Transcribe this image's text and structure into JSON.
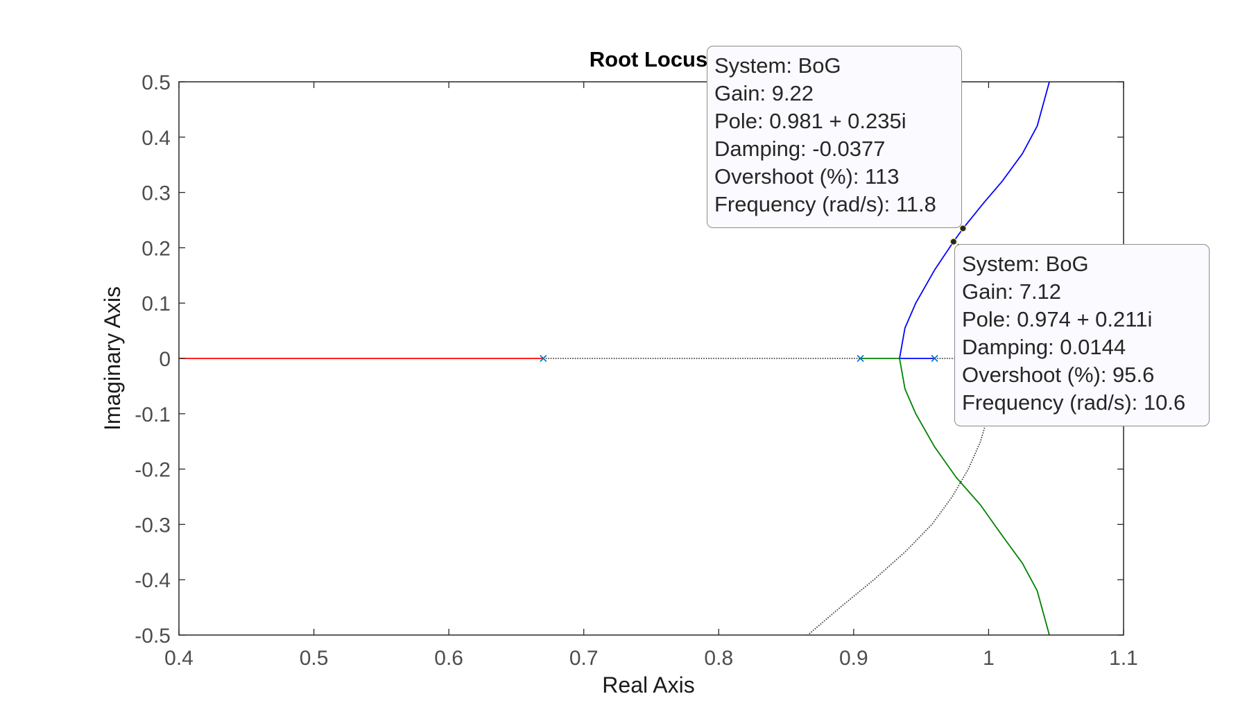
{
  "chart_data": {
    "type": "scatter",
    "title": "Root Locus",
    "xlabel": "Real Axis",
    "ylabel": "Imaginary Axis",
    "xlim": [
      0.4,
      1.1
    ],
    "ylim": [
      -0.5,
      0.5
    ],
    "xticks": [
      "0.4",
      "0.5",
      "0.6",
      "0.7",
      "0.8",
      "0.9",
      "1",
      "1.1"
    ],
    "yticks": [
      "0.5",
      "0.4",
      "0.3",
      "0.2",
      "0.1",
      "0",
      "-0.1",
      "-0.2",
      "-0.3",
      "-0.4",
      "-0.5"
    ],
    "grid": false,
    "series": [
      {
        "color": "#ff0000",
        "style": "solid",
        "points": [
          [
            0.4,
            0
          ],
          [
            0.67,
            0
          ]
        ]
      },
      {
        "color": "#0000ff",
        "style": "solid",
        "points": [
          [
            0.96,
            0
          ],
          [
            0.934,
            0
          ],
          [
            0.938,
            0.055
          ],
          [
            0.946,
            0.1
          ],
          [
            0.96,
            0.16
          ],
          [
            0.974,
            0.211
          ],
          [
            0.981,
            0.235
          ],
          [
            0.996,
            0.28
          ],
          [
            1.01,
            0.32
          ],
          [
            1.025,
            0.37
          ],
          [
            1.036,
            0.42
          ],
          [
            1.045,
            0.5
          ]
        ]
      },
      {
        "color": "#008000",
        "style": "solid",
        "points": [
          [
            0.905,
            0
          ],
          [
            0.934,
            0
          ],
          [
            0.938,
            -0.055
          ],
          [
            0.946,
            -0.1
          ],
          [
            0.96,
            -0.16
          ],
          [
            0.976,
            -0.215
          ],
          [
            0.994,
            -0.265
          ],
          [
            1.01,
            -0.32
          ],
          [
            1.025,
            -0.37
          ],
          [
            1.036,
            -0.42
          ],
          [
            1.045,
            -0.5
          ]
        ]
      },
      {
        "color": "#333333",
        "style": "dotted",
        "points": [
          [
            0.67,
            0
          ],
          [
            0.905,
            0
          ]
        ]
      },
      {
        "color": "#333333",
        "style": "dotted",
        "points": [
          [
            0.96,
            0
          ],
          [
            0.975,
            0
          ]
        ]
      },
      {
        "color": "#333333",
        "style": "dotted",
        "points": [
          [
            0.974,
            0.211
          ],
          [
            0.978,
            0.205
          ]
        ]
      },
      {
        "color": "#333333",
        "style": "dotted",
        "points": [
          [
            1.0,
            -0.1
          ],
          [
            0.994,
            -0.15
          ],
          [
            0.985,
            -0.2
          ],
          [
            0.973,
            -0.25
          ],
          [
            0.958,
            -0.3
          ],
          [
            0.938,
            -0.35
          ],
          [
            0.915,
            -0.4
          ],
          [
            0.89,
            -0.45
          ],
          [
            0.866,
            -0.5
          ]
        ]
      }
    ],
    "poles": [
      [
        0.67,
        0
      ],
      [
        0.905,
        0
      ],
      [
        0.96,
        0
      ]
    ],
    "pole_color": "#0072bd",
    "datatips": [
      {
        "system": "System: BoG",
        "gain": "Gain: 9.22",
        "pole": "Pole: 0.981 + 0.235i",
        "damping": "Damping: -0.0377",
        "overshoot": "Overshoot (%): 113",
        "frequency": "Frequency (rad/s): 11.8",
        "point": [
          0.981,
          0.235
        ]
      },
      {
        "system": "System: BoG",
        "gain": "Gain: 7.12",
        "pole": "Pole: 0.974 + 0.211i",
        "damping": "Damping: 0.0144",
        "overshoot": "Overshoot (%): 95.6",
        "frequency": "Frequency (rad/s): 10.6",
        "point": [
          0.974,
          0.211
        ]
      }
    ]
  }
}
